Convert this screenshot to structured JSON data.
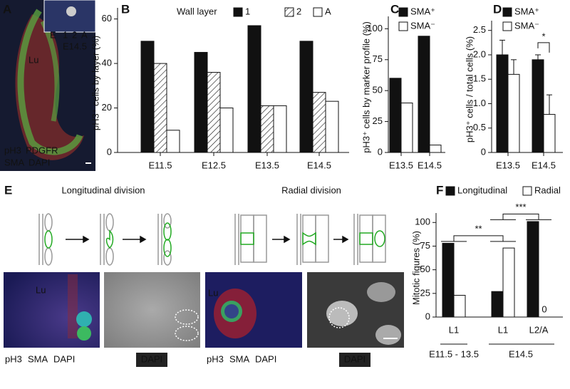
{
  "panel_labels": [
    "A",
    "B",
    "C",
    "D",
    "E",
    "F"
  ],
  "panel_a": {
    "lumen": "Lu",
    "inset_layers": [
      "E",
      "1",
      "2",
      "A"
    ],
    "inset_stage": "E14.5",
    "stains": [
      "pH3",
      "PDGFR",
      "SMA",
      "DAPI"
    ]
  },
  "panel_e": {
    "titles": [
      "Longitudinal division",
      "Radial division"
    ],
    "lumen": "Lu",
    "stains": [
      "pH3",
      "SMA",
      "DAPI"
    ],
    "dapi": "DAPI"
  },
  "chart_data": [
    {
      "type": "bar",
      "ylabel": "pH3⁺ cells by layer (%)",
      "legend_title": "Wall layer",
      "categories": [
        "E11.5",
        "E12.5",
        "E13.5",
        "E14.5"
      ],
      "series": [
        {
          "name": "1",
          "color": "#111111",
          "values": [
            50,
            45,
            57,
            50
          ]
        },
        {
          "name": "2",
          "color": "hatch",
          "values": [
            40,
            36,
            21,
            27
          ]
        },
        {
          "name": "A",
          "color": "#ffffff",
          "values": [
            10,
            20,
            21,
            23
          ]
        }
      ],
      "ylim": [
        0,
        65
      ],
      "yticks": [
        0,
        20,
        40,
        60
      ]
    },
    {
      "type": "bar",
      "ylabel": "pH3⁺ cells by marker profile (%)",
      "categories": [
        "E13.5",
        "E14.5"
      ],
      "series": [
        {
          "name": "SMA⁺",
          "color": "#111111",
          "values": [
            60,
            94
          ]
        },
        {
          "name": "SMA⁻",
          "color": "#ffffff",
          "values": [
            40,
            6
          ]
        }
      ],
      "ylim": [
        0,
        110
      ],
      "yticks": [
        0,
        25,
        50,
        75,
        100
      ]
    },
    {
      "type": "bar",
      "ylabel": "pH3⁺ cells / total cells (%)",
      "categories": [
        "E13.5",
        "E14.5"
      ],
      "series": [
        {
          "name": "SMA⁺",
          "color": "#111111",
          "values": [
            2.0,
            1.9
          ],
          "errors": [
            0.3,
            0.1
          ]
        },
        {
          "name": "SMA⁻",
          "color": "#ffffff",
          "values": [
            1.6,
            0.78
          ],
          "errors": [
            0.3,
            0.4
          ]
        }
      ],
      "ylim": [
        0,
        2.7
      ],
      "yticks": [
        0,
        0.5,
        {
          "value": 1,
          "label": "1.0"
        },
        1.5,
        {
          "value": 2,
          "label": "2.0"
        },
        2.5
      ],
      "significance": [
        "*"
      ]
    },
    {
      "type": "bar",
      "ylabel": "Mitotic figures (%)",
      "categories": [
        "L1",
        "L1",
        "L2/A"
      ],
      "group_labels": [
        "E11.5 - 13.5",
        "E14.5"
      ],
      "series": [
        {
          "name": "Longitudinal",
          "color": "#111111",
          "values": [
            78,
            27,
            101
          ]
        },
        {
          "name": "Radial",
          "color": "#ffffff",
          "values": [
            23,
            73,
            0
          ]
        }
      ],
      "ylim": [
        0,
        110
      ],
      "yticks": [
        0,
        25,
        50,
        75,
        100
      ],
      "significance": [
        "**",
        "***"
      ]
    }
  ]
}
